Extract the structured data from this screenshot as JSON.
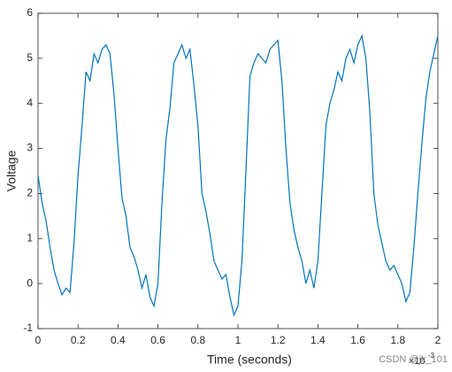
{
  "chart_data": {
    "type": "line",
    "x_label": "Time (seconds)",
    "y_label": "Voltage",
    "x_multiplier": {
      "base": "×10",
      "exponent": "-3"
    },
    "watermark": "CSDN @jk_101",
    "x": [
      0,
      0.02,
      0.04,
      0.06,
      0.08,
      0.1,
      0.12,
      0.14,
      0.16,
      0.18,
      0.2,
      0.22,
      0.24,
      0.26,
      0.28,
      0.3,
      0.32,
      0.34,
      0.36,
      0.38,
      0.4,
      0.42,
      0.44,
      0.46,
      0.48,
      0.5,
      0.52,
      0.54,
      0.56,
      0.58,
      0.6,
      0.62,
      0.64,
      0.66,
      0.68,
      0.7,
      0.72,
      0.74,
      0.76,
      0.78,
      0.8,
      0.82,
      0.84,
      0.86,
      0.88,
      0.9,
      0.92,
      0.94,
      0.96,
      0.98,
      1,
      1.02,
      1.04,
      1.06,
      1.08,
      1.1,
      1.12,
      1.14,
      1.16,
      1.18,
      1.2,
      1.22,
      1.24,
      1.26,
      1.28,
      1.3,
      1.32,
      1.34,
      1.36,
      1.38,
      1.4,
      1.42,
      1.44,
      1.46,
      1.48,
      1.5,
      1.52,
      1.54,
      1.56,
      1.58,
      1.6,
      1.62,
      1.64,
      1.66,
      1.68,
      1.7,
      1.72,
      1.74,
      1.76,
      1.78,
      1.8,
      1.82,
      1.84,
      1.86,
      1.88,
      1.9,
      1.92,
      1.94,
      1.96,
      1.98,
      2
    ],
    "series": [
      {
        "color": "#0072bd",
        "values": [
          2.4,
          1.8,
          1.4,
          0.8,
          0.3,
          0.0,
          -0.25,
          -0.1,
          -0.2,
          0.9,
          2.4,
          3.5,
          4.7,
          4.5,
          5.1,
          4.9,
          5.2,
          5.3,
          5.1,
          4.2,
          3.0,
          1.9,
          1.5,
          0.8,
          0.6,
          0.3,
          -0.1,
          0.2,
          -0.3,
          -0.5,
          0.0,
          1.8,
          3.2,
          3.9,
          4.9,
          5.1,
          5.3,
          5.0,
          5.2,
          4.4,
          3.5,
          2.0,
          1.6,
          1.1,
          0.5,
          0.3,
          0.1,
          0.2,
          -0.3,
          -0.7,
          -0.5,
          0.5,
          2.5,
          4.6,
          4.9,
          5.1,
          5.0,
          4.9,
          5.2,
          5.3,
          5.4,
          4.5,
          3.0,
          1.8,
          1.2,
          0.8,
          0.5,
          0.0,
          0.3,
          -0.1,
          0.5,
          2.0,
          3.5,
          4.0,
          4.3,
          4.7,
          4.5,
          5.0,
          5.2,
          4.9,
          5.3,
          5.5,
          5.0,
          3.8,
          2.0,
          1.3,
          0.9,
          0.5,
          0.3,
          0.4,
          0.2,
          0.0,
          -0.4,
          -0.2,
          0.8,
          2.0,
          3.1,
          4.1,
          4.7,
          5.1,
          5.5
        ]
      }
    ],
    "xlim": [
      0,
      2
    ],
    "xticks": [
      0,
      0.2,
      0.4,
      0.6,
      0.8,
      1,
      1.2,
      1.4,
      1.6,
      1.8,
      2
    ],
    "ylim": [
      -1,
      6
    ],
    "yticks": [
      -1,
      0,
      1,
      2,
      3,
      4,
      5,
      6
    ]
  }
}
